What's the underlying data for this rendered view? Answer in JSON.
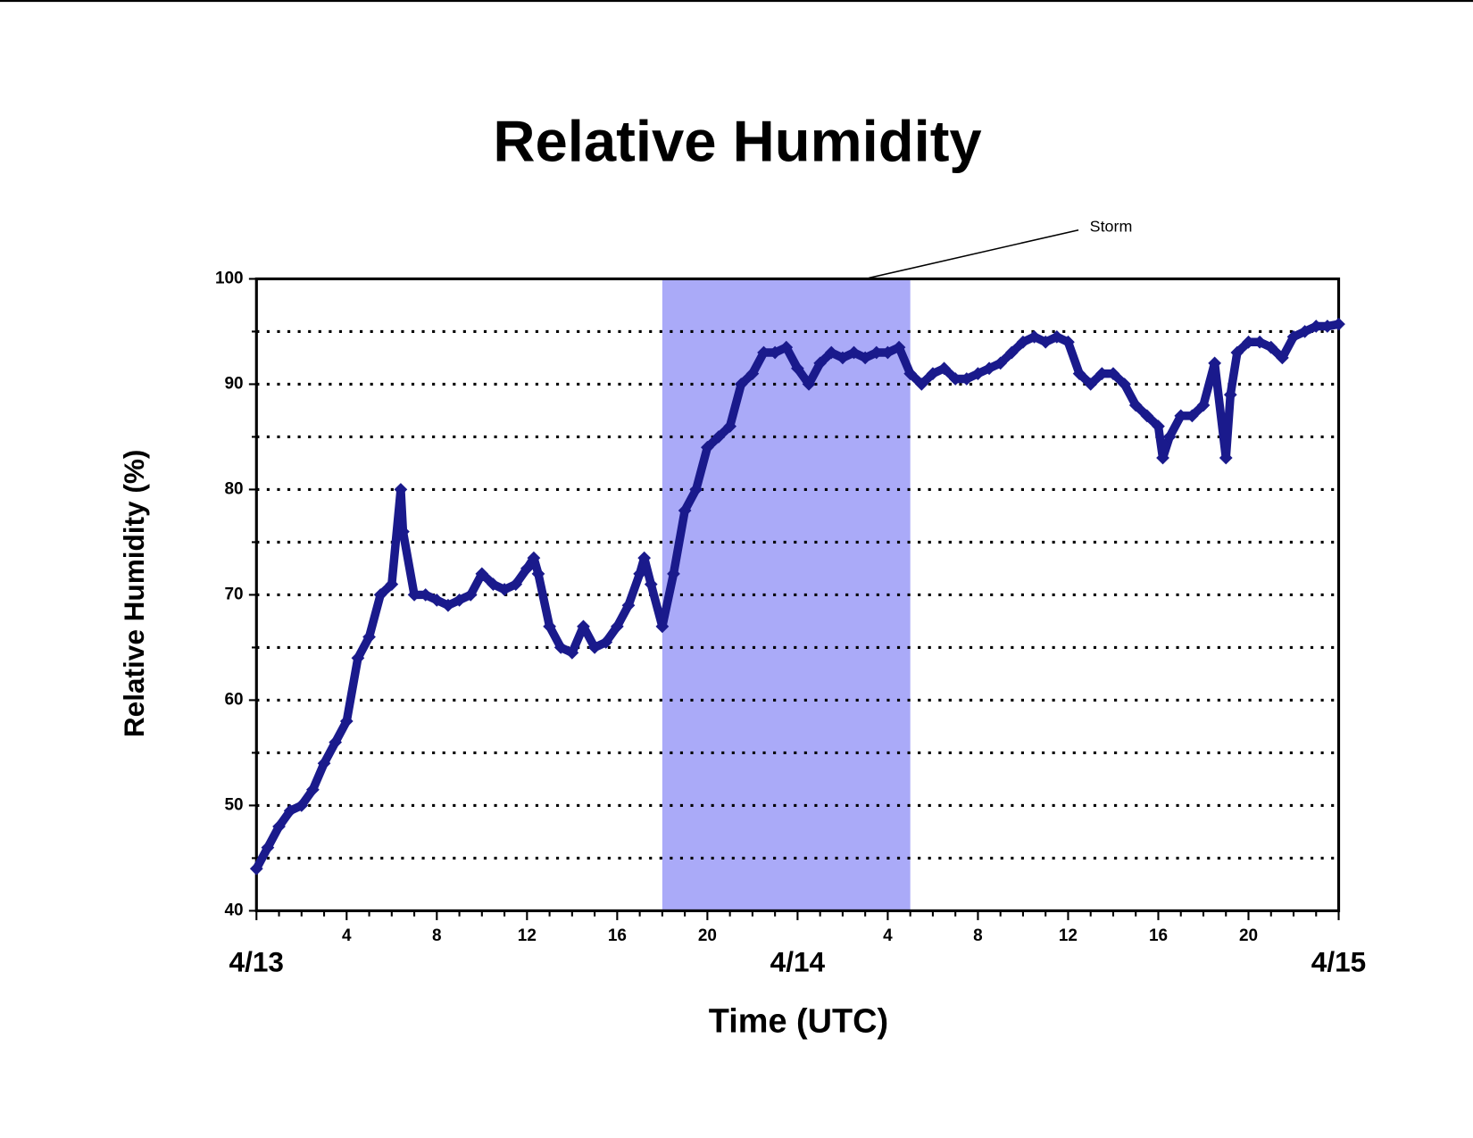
{
  "chart_data": {
    "type": "scatter",
    "title": "Relative Humidity",
    "xlabel": "Time (UTC)",
    "ylabel": "Relative Humidity (%)",
    "xlim": [
      0,
      48
    ],
    "ylim": [
      40,
      100
    ],
    "yticks": [
      40,
      50,
      60,
      70,
      80,
      90,
      100
    ],
    "yminorticks": [
      45,
      55,
      65,
      75,
      85,
      95
    ],
    "xticks": [
      4,
      8,
      12,
      16,
      20,
      {
        "value": 28,
        "label": "4"
      },
      {
        "value": 32,
        "label": "8"
      },
      {
        "value": 36,
        "label": "12"
      },
      {
        "value": 40,
        "label": "16"
      },
      {
        "value": 44,
        "label": "20"
      }
    ],
    "xminorticks": [
      1,
      2,
      3,
      5,
      6,
      7,
      9,
      10,
      11,
      13,
      14,
      15,
      17,
      18,
      19,
      21,
      22,
      23,
      25,
      26,
      27,
      29,
      30,
      31,
      33,
      34,
      35,
      37,
      38,
      39,
      41,
      42,
      43,
      45,
      46,
      47
    ],
    "date_labels": [
      {
        "value": 0,
        "label": "4/13"
      },
      {
        "value": 24,
        "label": "4/14"
      },
      {
        "value": 48,
        "label": "4/15"
      }
    ],
    "grid": true,
    "annotations": [
      {
        "text": "Storm",
        "x0": 18,
        "x1": 29,
        "color": "#aaaaf8"
      }
    ],
    "x": [
      0,
      0.5,
      1,
      1.5,
      2,
      2.5,
      3,
      3.5,
      4,
      4.5,
      5,
      5.5,
      6,
      6.4,
      6.5,
      7,
      7.5,
      8,
      8.5,
      9,
      9.5,
      10,
      10.5,
      11,
      11.5,
      12,
      12.3,
      12.5,
      13,
      13.5,
      14,
      14.5,
      15,
      15.5,
      16,
      16.5,
      17,
      17.2,
      17.5,
      18,
      18.5,
      19,
      19.5,
      20,
      20.5,
      21,
      21.5,
      22,
      22.5,
      23,
      23.5,
      24,
      24.5,
      25,
      25.5,
      26,
      26.5,
      27,
      27.5,
      28,
      28.5,
      29,
      29.5,
      30,
      30.5,
      31,
      31.5,
      32,
      32.5,
      33,
      33.5,
      34,
      34.5,
      35,
      35.5,
      36,
      36.5,
      37,
      37.5,
      38,
      38.5,
      39,
      39.5,
      40,
      40.2,
      40.5,
      41,
      41.5,
      42,
      42.5,
      43,
      43.2,
      43.5,
      44,
      44.5,
      45,
      45.5,
      46,
      46.5,
      47,
      47.5,
      48
    ],
    "series": [
      {
        "color": "#1a1a8c",
        "values": [
          44,
          46,
          48,
          49.5,
          50,
          51.5,
          54,
          56,
          58,
          64,
          66,
          70,
          71,
          80,
          76,
          70,
          70,
          69.5,
          69,
          69.5,
          70,
          72,
          71,
          70.5,
          71,
          72.5,
          73.5,
          72,
          67,
          65,
          64.5,
          67,
          65,
          65.5,
          67,
          69,
          72,
          73.5,
          71,
          67,
          72,
          78,
          80,
          84,
          85,
          86,
          90,
          91,
          93,
          93,
          93.5,
          91.5,
          90,
          92,
          93,
          92.5,
          93,
          92.5,
          93,
          93,
          93.5,
          91,
          90,
          91,
          91.5,
          90.5,
          90.5,
          91,
          91.5,
          92,
          93,
          94,
          94.5,
          94,
          94.5,
          94,
          91,
          90,
          91,
          91,
          90,
          88,
          87,
          86,
          83,
          85,
          87,
          87,
          88,
          92,
          83,
          89,
          93,
          94,
          94,
          93.5,
          92.5,
          94.5,
          95,
          95.5,
          95.5,
          95.7
        ]
      }
    ]
  }
}
